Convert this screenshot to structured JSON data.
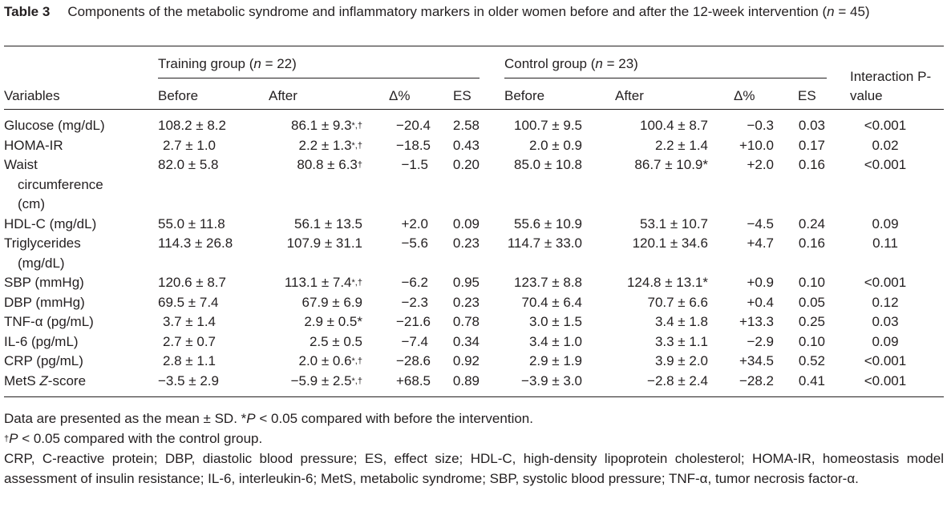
{
  "caption": {
    "label": "Table 3",
    "text_pre": "Components of the metabolic syndrome and inflammatory markers in older women before and after the 12-week intervention (",
    "text_n": "n",
    "text_post": " = 45)"
  },
  "header": {
    "variables": "Variables",
    "training": {
      "pre": "Training group (",
      "n": "n",
      "post": " = 22)"
    },
    "control": {
      "pre": "Control group (",
      "n": "n",
      "post": " = 23)"
    },
    "interaction": "Interaction P-value",
    "before": "Before",
    "after": "After",
    "delta": "Δ%",
    "es": "ES"
  },
  "rows": [
    {
      "var": "Glucose (mg/dL)",
      "tb": "108.2 ± 8.2",
      "ta": "86.1 ± 9.3",
      "ta_sup": "*,†",
      "td": "−20.4",
      "tes": "2.58",
      "cb": "100.7 ± 9.5",
      "ca": "100.4 ± 8.7",
      "cd": "−0.3",
      "ces": "0.03",
      "p": "<0.001"
    },
    {
      "var": "HOMA-IR",
      "tb": "2.7 ± 1.0",
      "ta": "2.2 ± 1.3",
      "ta_sup": "*,†",
      "td": "−18.5",
      "tes": "0.43",
      "cb": "2.0 ± 0.9",
      "ca": "2.2 ± 1.4",
      "cd": "+10.0",
      "ces": "0.17",
      "p": "0.02"
    },
    {
      "var": "Waist circumference (cm)",
      "tb": "82.0 ± 5.8",
      "ta": "80.8 ± 6.3",
      "ta_sup": "†",
      "td": "−1.5",
      "tes": "0.20",
      "cb": "85.0 ± 10.8",
      "ca": "86.7 ± 10.9*",
      "cd": "+2.0",
      "ces": "0.16",
      "p": "<0.001"
    },
    {
      "var": "HDL-C (mg/dL)",
      "tb": "55.0 ± 11.8",
      "ta": "56.1 ± 13.5",
      "ta_sup": "",
      "td": "+2.0",
      "tes": "0.09",
      "cb": "55.6 ± 10.9",
      "ca": "53.1 ± 10.7",
      "cd": "−4.5",
      "ces": "0.24",
      "p": "0.09"
    },
    {
      "var": "Triglycerides (mg/dL)",
      "tb": "114.3 ± 26.8",
      "ta": "107.9 ± 31.1",
      "ta_sup": "",
      "td": "−5.6",
      "tes": "0.23",
      "cb": "114.7 ± 33.0",
      "ca": "120.1 ± 34.6",
      "cd": "+4.7",
      "ces": "0.16",
      "p": "0.11"
    },
    {
      "var": "SBP (mmHg)",
      "tb": "120.6 ± 8.7",
      "ta": "113.1 ± 7.4",
      "ta_sup": "*,†",
      "td": "−6.2",
      "tes": "0.95",
      "cb": "123.7 ± 8.8",
      "ca": "124.8 ± 13.1*",
      "cd": "+0.9",
      "ces": "0.10",
      "p": "<0.001"
    },
    {
      "var": "DBP (mmHg)",
      "tb": "69.5 ± 7.4",
      "ta": "67.9 ± 6.9",
      "ta_sup": "",
      "td": "−2.3",
      "tes": "0.23",
      "cb": "70.4 ± 6.4",
      "ca": "70.7 ± 6.6",
      "cd": "+0.4",
      "ces": "0.05",
      "p": "0.12"
    },
    {
      "var": "TNF-α (pg/mL)",
      "tb": "3.7 ± 1.4",
      "ta": "2.9 ± 0.5*",
      "ta_sup": "",
      "td": "−21.6",
      "tes": "0.78",
      "cb": "3.0 ± 1.5",
      "ca": "3.4 ± 1.8",
      "cd": "+13.3",
      "ces": "0.25",
      "p": "0.03"
    },
    {
      "var": "IL-6 (pg/mL)",
      "tb": "2.7 ± 0.7",
      "ta": "2.5 ± 0.5",
      "ta_sup": "",
      "td": "−7.4",
      "tes": "0.34",
      "cb": "3.4 ± 1.0",
      "ca": "3.3 ± 1.1",
      "cd": "−2.9",
      "ces": "0.10",
      "p": "0.09"
    },
    {
      "var": "CRP (pg/mL)",
      "tb": "2.8 ± 1.1",
      "ta": "2.0 ± 0.6",
      "ta_sup": "*,†",
      "td": "−28.6",
      "tes": "0.92",
      "cb": "2.9 ± 1.9",
      "ca": "3.9 ± 2.0",
      "cd": "+34.5",
      "ces": "0.52",
      "p": "<0.001"
    },
    {
      "var_pre": "MetS ",
      "var_it": "Z",
      "var_post": "-score",
      "tb": "−3.5 ± 2.9",
      "ta": "−5.9 ± 2.5",
      "ta_sup": "*,†",
      "td": "+68.5",
      "tes": "0.89",
      "cb": "−3.9 ± 3.0",
      "ca": "−2.8 ± 2.4",
      "cd": "−28.2",
      "ces": "0.41",
      "p": "<0.001"
    }
  ],
  "notes": {
    "n1_pre": "Data are presented as the mean ± SD. *",
    "n1_p": "P",
    "n1_post": " < 0.05 compared with before the intervention.",
    "n2_sup": "†",
    "n2_p": "P",
    "n2_post": " < 0.05 compared with the control group.",
    "n3": "CRP, C-reactive protein; DBP, diastolic blood pressure; ES, effect size; HDL-C, high-density lipoprotein cholesterol; HOMA-IR, homeostasis model assessment of insulin resistance; IL-6, interleukin-6; MetS, metabolic syndrome; SBP, systolic blood pressure; TNF-α, tumor necrosis factor-α."
  }
}
